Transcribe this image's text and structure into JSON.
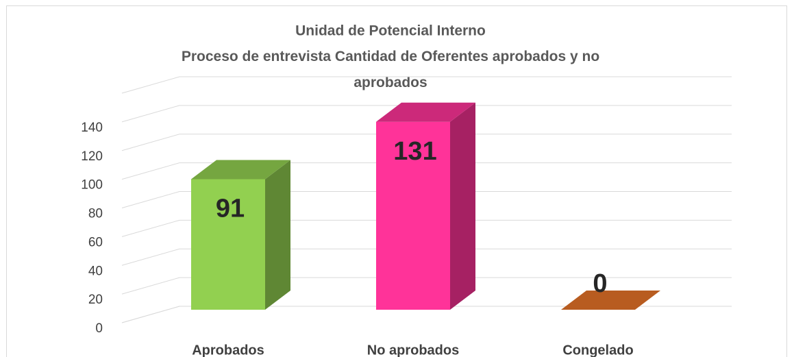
{
  "chart_data": {
    "type": "bar3d",
    "title": "Unidad de Potencial Interno",
    "subtitle": "Proceso de entrevista Cantidad de Oferentes aprobados y no aprobados",
    "categories": [
      "Aprobados",
      "No aprobados",
      "Congelado"
    ],
    "values": [
      91,
      131,
      0
    ],
    "colors": [
      "#92d050",
      "#ff3399",
      "#b85c20"
    ],
    "ylim": [
      0,
      160
    ],
    "yticks": [
      0,
      20,
      40,
      60,
      80,
      100,
      120,
      140
    ],
    "grid": true
  }
}
